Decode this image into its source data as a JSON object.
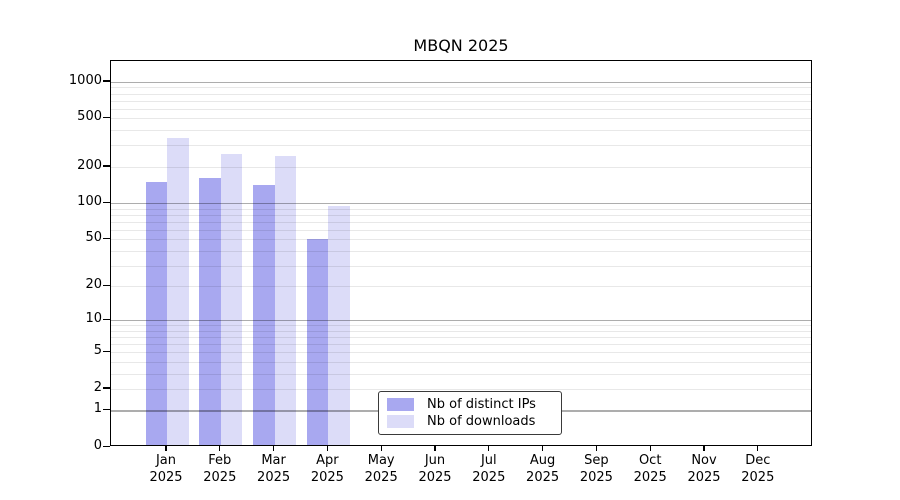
{
  "chart_data": {
    "type": "bar",
    "title": "MBQN 2025",
    "year": "2025",
    "months": [
      "Jan",
      "Feb",
      "Mar",
      "Apr",
      "May",
      "Jun",
      "Jul",
      "Aug",
      "Sep",
      "Oct",
      "Nov",
      "Dec"
    ],
    "categories": [
      "Jan 2025",
      "Feb 2025",
      "Mar 2025",
      "Apr 2025",
      "May 2025",
      "Jun 2025",
      "Jul 2025",
      "Aug 2025",
      "Sep 2025",
      "Oct 2025",
      "Nov 2025",
      "Dec 2025"
    ],
    "series": [
      {
        "name": "Nb of distinct IPs",
        "color": "#a8a8f0",
        "values": [
          150,
          160,
          140,
          50,
          null,
          null,
          null,
          null,
          null,
          null,
          null,
          null
        ]
      },
      {
        "name": "Nb of downloads",
        "color": "#dcdcf8",
        "values": [
          345,
          255,
          245,
          95,
          null,
          null,
          null,
          null,
          null,
          null,
          null,
          null
        ]
      }
    ],
    "xlabel": "",
    "ylabel": "",
    "yscale": "log1p",
    "yticks": [
      0,
      1,
      2,
      5,
      10,
      20,
      50,
      100,
      200,
      500,
      1000
    ],
    "ylim": [
      0,
      1485
    ],
    "grid": "horizontal, log minor lines, majors at powers of ten, drawn over bars",
    "legend_position": "inside bottom-center",
    "colors": {
      "grid_major": "#b0b0b0",
      "grid_minor": "#e9e9e9",
      "spine": "#000000",
      "background": "#ffffff"
    }
  }
}
